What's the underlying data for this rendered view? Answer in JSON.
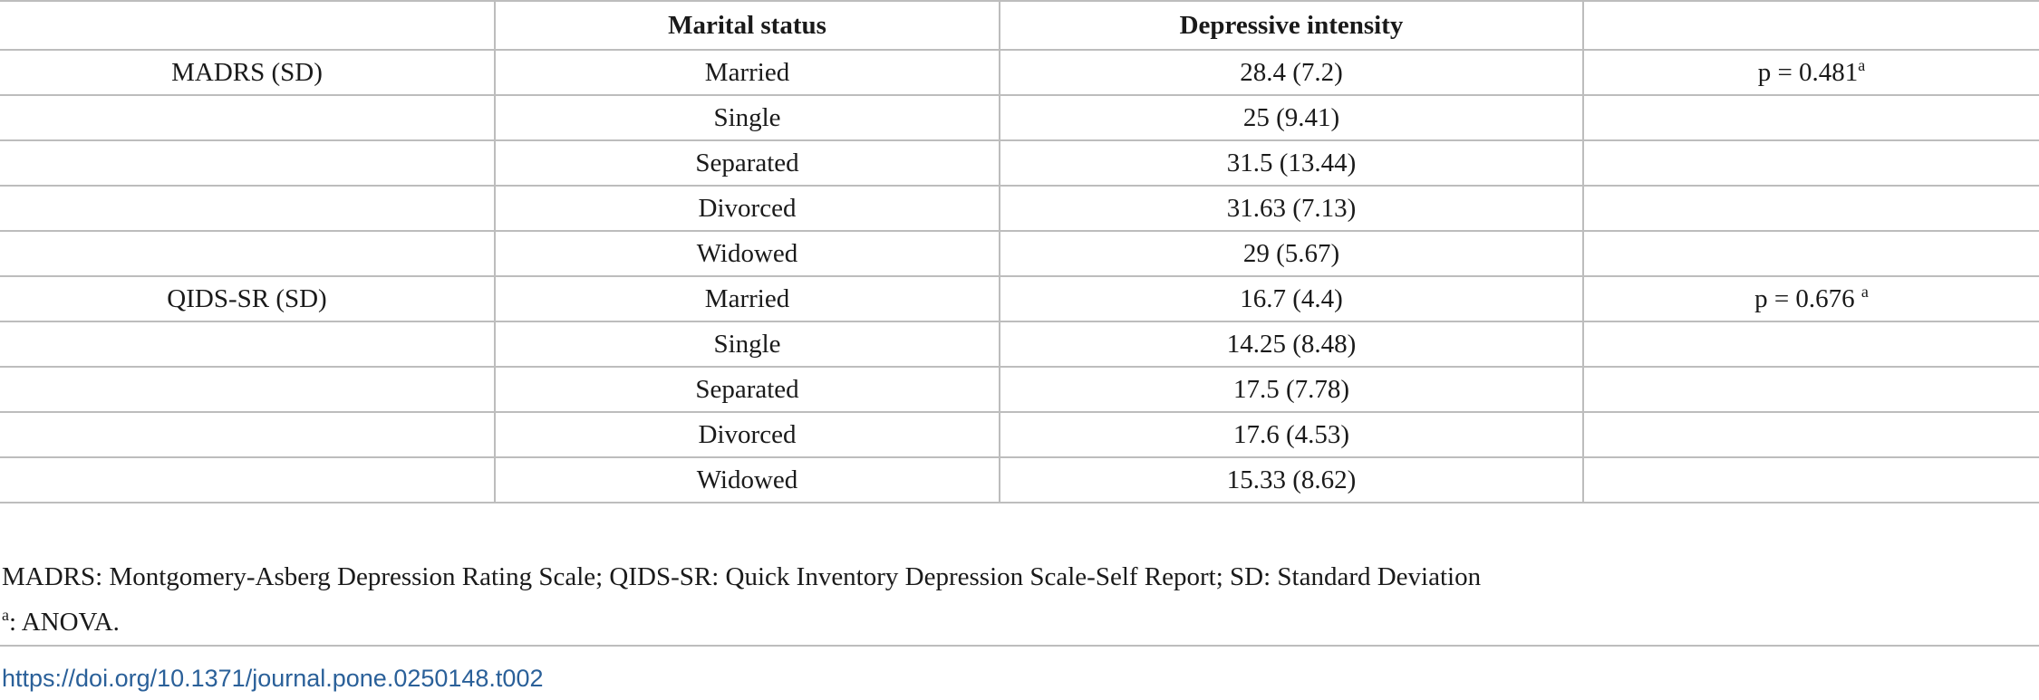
{
  "table": {
    "headers": [
      "",
      "Marital status",
      "Depressive intensity",
      ""
    ],
    "rows": [
      {
        "scale": "MADRS (SD)",
        "status": "Married",
        "intensity": "28.4 (7.2)",
        "p": "p = 0.481",
        "p_sup": "a"
      },
      {
        "scale": "",
        "status": "Single",
        "intensity": "25 (9.41)",
        "p": "",
        "p_sup": ""
      },
      {
        "scale": "",
        "status": "Separated",
        "intensity": "31.5 (13.44)",
        "p": "",
        "p_sup": ""
      },
      {
        "scale": "",
        "status": "Divorced",
        "intensity": "31.63 (7.13)",
        "p": "",
        "p_sup": ""
      },
      {
        "scale": "",
        "status": "Widowed",
        "intensity": "29 (5.67)",
        "p": "",
        "p_sup": ""
      },
      {
        "scale": "QIDS-SR (SD)",
        "status": "Married",
        "intensity": "16.7 (4.4)",
        "p": "p = 0.676 ",
        "p_sup": "a"
      },
      {
        "scale": "",
        "status": "Single",
        "intensity": "14.25 (8.48)",
        "p": "",
        "p_sup": ""
      },
      {
        "scale": "",
        "status": "Separated",
        "intensity": "17.5 (7.78)",
        "p": "",
        "p_sup": ""
      },
      {
        "scale": "",
        "status": "Divorced",
        "intensity": "17.6 (4.53)",
        "p": "",
        "p_sup": ""
      },
      {
        "scale": "",
        "status": "Widowed",
        "intensity": "15.33 (8.62)",
        "p": "",
        "p_sup": ""
      }
    ]
  },
  "footnotes": {
    "abbreviations": "MADRS: Montgomery-Asberg Depression Rating Scale; QIDS-SR: Quick Inventory Depression Scale-Self Report; SD: Standard Deviation",
    "note_marker": "a",
    "note_text": ": ANOVA."
  },
  "doi": {
    "text": "https://doi.org/10.1371/journal.pone.0250148.t002"
  },
  "colors": {
    "border": "#bdbdbd",
    "link": "#2a6099",
    "text": "#1a1a1a"
  }
}
